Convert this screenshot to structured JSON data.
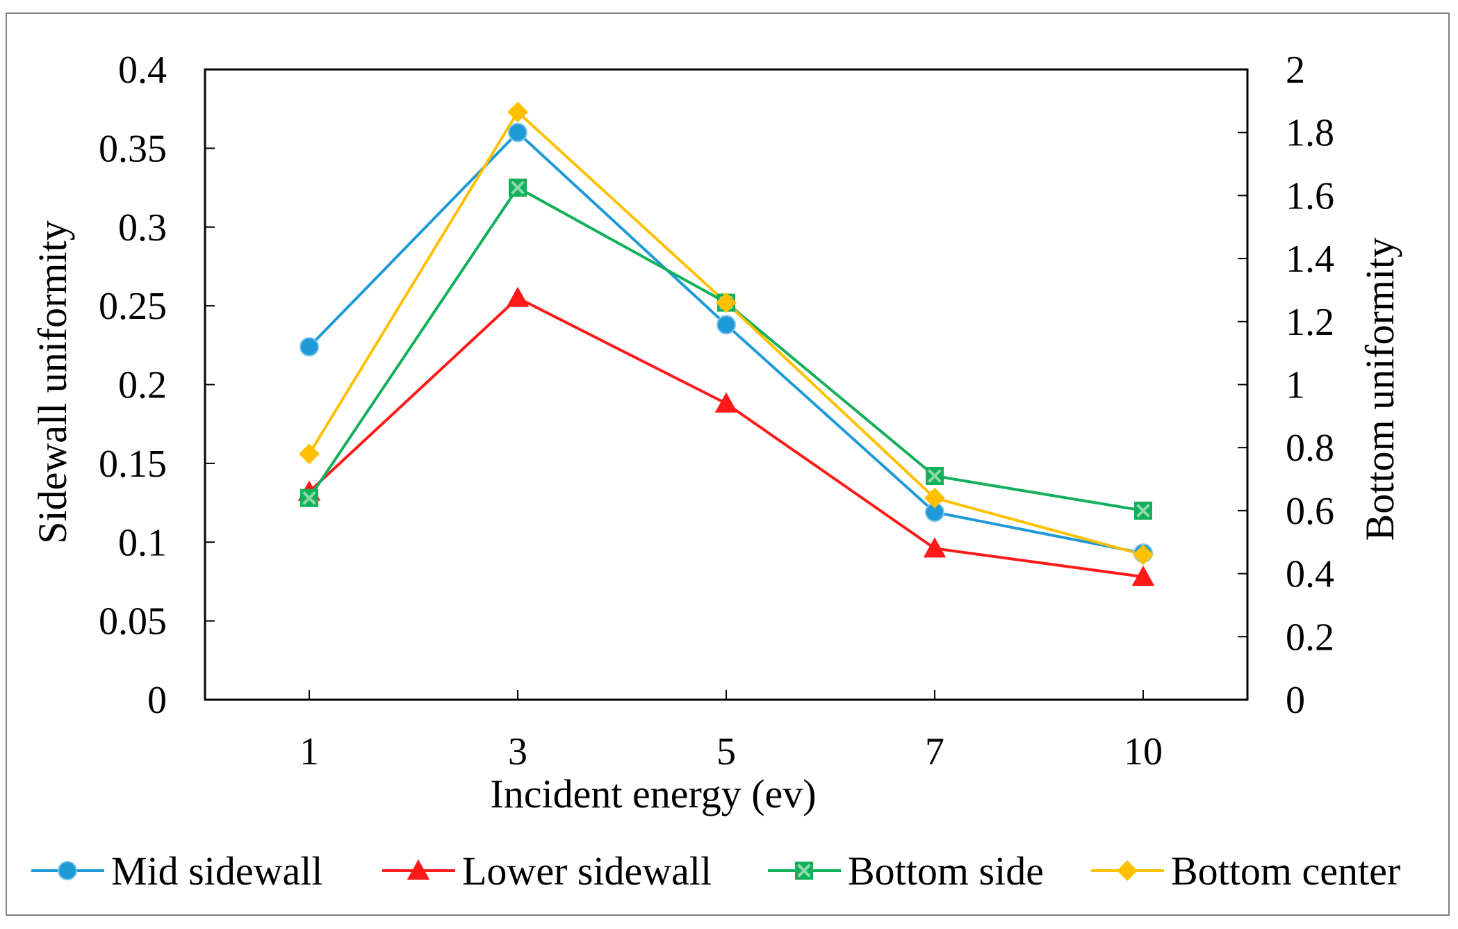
{
  "chart_data": {
    "type": "line",
    "title": "",
    "categories": [
      "1",
      "3",
      "5",
      "7",
      "10"
    ],
    "xlabel": "Incident energy (ev)",
    "ylabel_left": "Sidewall  uniformity",
    "ylabel_right": "Bottom uniformity",
    "ylim_left": [
      0,
      0.4
    ],
    "ylim_right": [
      0,
      2
    ],
    "left_ticks": [
      "0",
      "0.05",
      "0.1",
      "0.15",
      "0.2",
      "0.25",
      "0.3",
      "0.35",
      "0.4"
    ],
    "right_ticks": [
      "0",
      "0.2",
      "0.4",
      "0.6",
      "0.8",
      "1",
      "1.2",
      "1.4",
      "1.6",
      "1.8",
      "2"
    ],
    "legend_position": "bottom",
    "series": [
      {
        "name": "Mid sidewall",
        "axis": "left",
        "color": "#1f9ad6",
        "marker": "circle",
        "values": [
          0.224,
          0.36,
          0.238,
          0.119,
          0.093
        ]
      },
      {
        "name": "Lower sidewall",
        "axis": "left",
        "color": "#ff1a1a",
        "marker": "triangle",
        "values": [
          0.132,
          0.255,
          0.188,
          0.096,
          0.078
        ]
      },
      {
        "name": "Bottom side",
        "axis": "right",
        "color": "#12b05a",
        "marker": "square-x",
        "values": [
          0.64,
          1.625,
          1.26,
          0.71,
          0.6
        ]
      },
      {
        "name": "Bottom center",
        "axis": "right",
        "color": "#ffc000",
        "marker": "diamond",
        "values": [
          0.78,
          1.865,
          1.26,
          0.64,
          0.46
        ]
      }
    ]
  }
}
